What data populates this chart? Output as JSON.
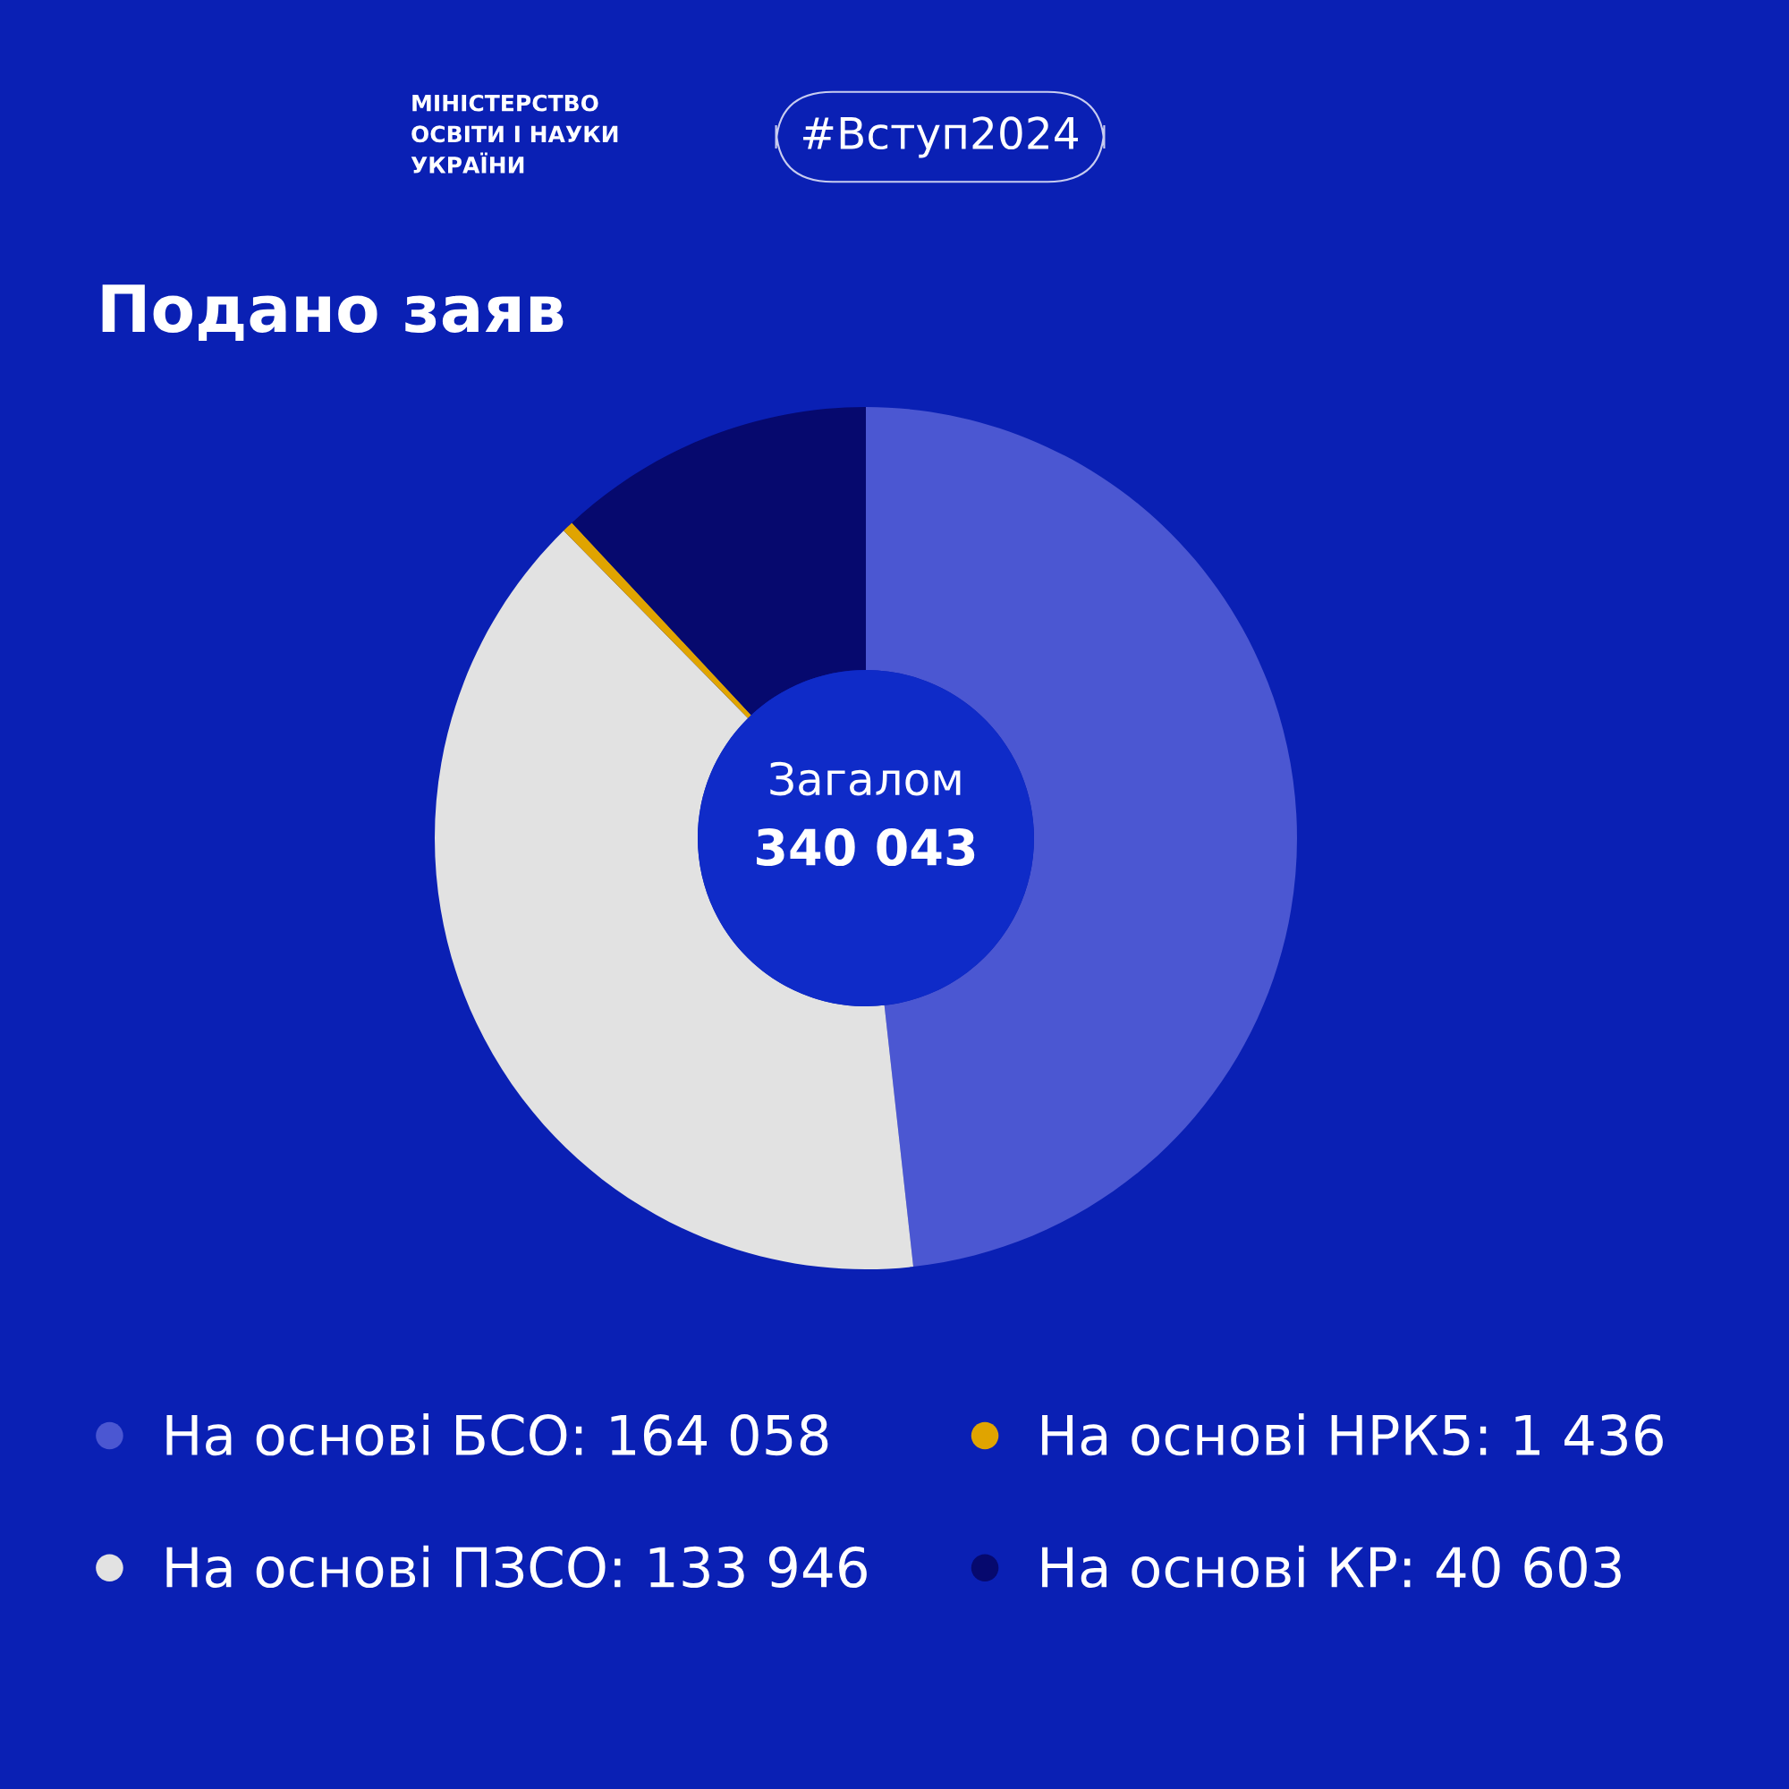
{
  "chart_data": {
    "type": "donut",
    "title": "Подано заяв",
    "categories": [
      "На основі БСО",
      "На основі ПЗСО",
      "На основі НРК5",
      "На основі КР"
    ],
    "values": [
      164058,
      133946,
      1436,
      40603
    ],
    "colors": [
      "#4b57d2",
      "#e2e2e2",
      "#e0a400",
      "#06096e"
    ],
    "value_labels": [
      "164 058",
      "133 946",
      "1 436",
      "40 603"
    ],
    "legend": "bottom",
    "annotations": [
      "#Вступ2024",
      "МІНІСТЕРСТВО\nОСВІТИ І НАУКИ\nУКРАЇНИ",
      "Загалом",
      "340 043"
    ]
  }
}
